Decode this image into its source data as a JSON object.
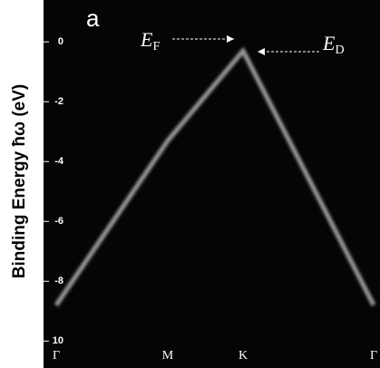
{
  "chart_data": {
    "type": "line",
    "panel_label": "a",
    "ylabel": "Binding Energy ħω (eV)",
    "categories": [
      "Γ",
      "M",
      "K",
      "Γ"
    ],
    "series": [
      {
        "color": "#9a9a9a",
        "values": [
          -8.8,
          -3.3,
          -0.3,
          -8.8
        ]
      }
    ],
    "ylim": [
      -10.9,
      1.4
    ],
    "yticks": [
      0,
      -2,
      -4,
      -6,
      -8,
      {
        "value": -10,
        "label": "10"
      }
    ],
    "annotations": [
      {
        "main": "E",
        "sub": "F"
      },
      {
        "main": "E",
        "sub": "D"
      }
    ]
  }
}
